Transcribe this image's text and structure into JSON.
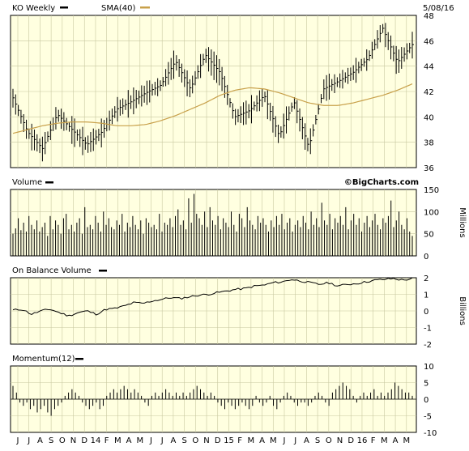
{
  "chart_data": [
    {
      "type": "ohlc",
      "title": "KO Weekly",
      "legend": [
        "KO Weekly",
        "SMA(40)"
      ],
      "date_label": "5/08/16",
      "watermark": "©BigCharts.com",
      "ylim": [
        36,
        48
      ],
      "yticks": [
        36,
        38,
        40,
        42,
        44,
        46,
        48
      ],
      "colors": {
        "price": "#000000",
        "sma": "#c8a04a",
        "background": "#ffffe0",
        "grid": "#c8c8a0"
      },
      "price_anchors": [
        41.5,
        38.8,
        37.5,
        40.2,
        39.0,
        37.8,
        38.8,
        40.6,
        41.2,
        41.9,
        42.5,
        44.4,
        42.2,
        44.9,
        43.5,
        40.0,
        40.5,
        41.7,
        38.5,
        41.2,
        37.6,
        42.2,
        42.8,
        43.5,
        44.6,
        47.0,
        44.3,
        45.7
      ],
      "sma_anchors": [
        38.7,
        39.0,
        39.3,
        39.5,
        39.6,
        39.6,
        39.5,
        39.3,
        39.3,
        39.4,
        39.7,
        40.1,
        40.6,
        41.1,
        41.7,
        42.1,
        42.3,
        42.2,
        41.9,
        41.5,
        41.1,
        40.9,
        40.9,
        41.1,
        41.4,
        41.7,
        42.1,
        42.6
      ]
    },
    {
      "type": "bar",
      "title": "Volume",
      "ylabel": "Millions",
      "ylim": [
        0,
        150
      ],
      "yticks": [
        0,
        50,
        100,
        150
      ],
      "values": [
        50,
        62,
        85,
        58,
        75,
        55,
        90,
        70,
        60,
        80,
        55,
        65,
        75,
        45,
        90,
        60,
        80,
        70,
        50,
        85,
        95,
        60,
        70,
        55,
        75,
        85,
        50,
        110,
        65,
        70,
        60,
        90,
        75,
        55,
        100,
        70,
        85,
        65,
        60,
        80,
        70,
        95,
        55,
        75,
        65,
        90,
        70,
        60,
        80,
        50,
        85,
        75,
        65,
        70,
        60,
        95,
        55,
        75,
        70,
        85,
        65,
        90,
        105,
        70,
        80,
        60,
        130,
        75,
        140,
        95,
        85,
        70,
        100,
        65,
        110,
        80,
        70,
        90,
        60,
        85,
        75,
        65,
        100,
        70,
        55,
        95,
        85,
        65,
        110,
        80,
        70,
        60,
        90,
        75,
        85,
        70,
        55,
        80,
        65,
        90,
        70,
        95,
        60,
        75,
        85,
        55,
        70,
        80,
        65,
        90,
        75,
        60,
        100,
        70,
        85,
        65,
        120,
        80,
        70,
        95,
        60,
        85,
        75,
        90,
        70,
        110,
        60,
        80,
        95,
        70,
        85,
        55,
        75,
        90,
        65,
        80,
        95,
        70,
        60,
        85,
        75,
        90,
        125,
        65,
        80,
        100,
        70,
        60,
        85,
        55,
        45
      ]
    },
    {
      "type": "line",
      "title": "On Balance Volume",
      "ylabel": "Billions",
      "ylim": [
        -2,
        2
      ],
      "yticks": [
        -2,
        -1,
        0,
        1,
        2
      ],
      "anchors": [
        0.05,
        0.1,
        -0.2,
        0.0,
        0.1,
        -0.1,
        -0.3,
        -0.1,
        0.0,
        -0.2,
        0.1,
        0.15,
        0.3,
        0.5,
        0.45,
        0.6,
        0.7,
        0.8,
        0.75,
        0.85,
        0.95,
        1.0,
        1.1,
        1.2,
        1.3,
        1.35,
        1.5,
        1.55,
        1.7,
        1.75,
        1.9,
        1.8,
        1.7,
        1.6,
        1.7,
        1.5,
        1.6,
        1.65,
        1.75,
        1.85,
        1.9,
        1.95,
        1.85,
        1.95
      ]
    },
    {
      "type": "bar",
      "title": "Momentum(12)",
      "ylim": [
        -10,
        10
      ],
      "yticks": [
        -10,
        -5,
        0,
        5,
        10
      ],
      "values": [
        4,
        2,
        -1,
        -2,
        -1,
        -3,
        -2,
        -4,
        -3,
        -2,
        -4,
        -5,
        -3,
        -2,
        -1,
        1,
        2,
        3,
        2,
        1,
        -1,
        -2,
        -3,
        -2,
        -1,
        -3,
        -2,
        1,
        2,
        3,
        2,
        3,
        4,
        3,
        2,
        3,
        2,
        1,
        -1,
        -2,
        1,
        2,
        1,
        2,
        3,
        2,
        1,
        2,
        1,
        2,
        1,
        2,
        3,
        4,
        3,
        2,
        1,
        2,
        1,
        -1,
        -2,
        -3,
        -1,
        -2,
        -3,
        -2,
        -1,
        -2,
        -3,
        -2,
        1,
        -1,
        -2,
        -1,
        1,
        -2,
        -3,
        -1,
        1,
        2,
        1,
        -1,
        -2,
        -1,
        -1,
        -2,
        -1,
        1,
        2,
        1,
        -1,
        -2,
        2,
        3,
        4,
        5,
        4,
        3,
        1,
        -1,
        1,
        2,
        1,
        2,
        3,
        1,
        2,
        1,
        2,
        3,
        5,
        4,
        3,
        2,
        2,
        1
      ]
    }
  ],
  "x_axis": {
    "labels": [
      "J",
      "J",
      "A",
      "S",
      "O",
      "N",
      "D",
      "14",
      "F",
      "M",
      "A",
      "M",
      "J",
      "J",
      "A",
      "S",
      "O",
      "N",
      "D",
      "15",
      "F",
      "M",
      "A",
      "M",
      "J",
      "J",
      "A",
      "S",
      "O",
      "N",
      "D",
      "16",
      "F",
      "M",
      "A",
      "M"
    ]
  }
}
